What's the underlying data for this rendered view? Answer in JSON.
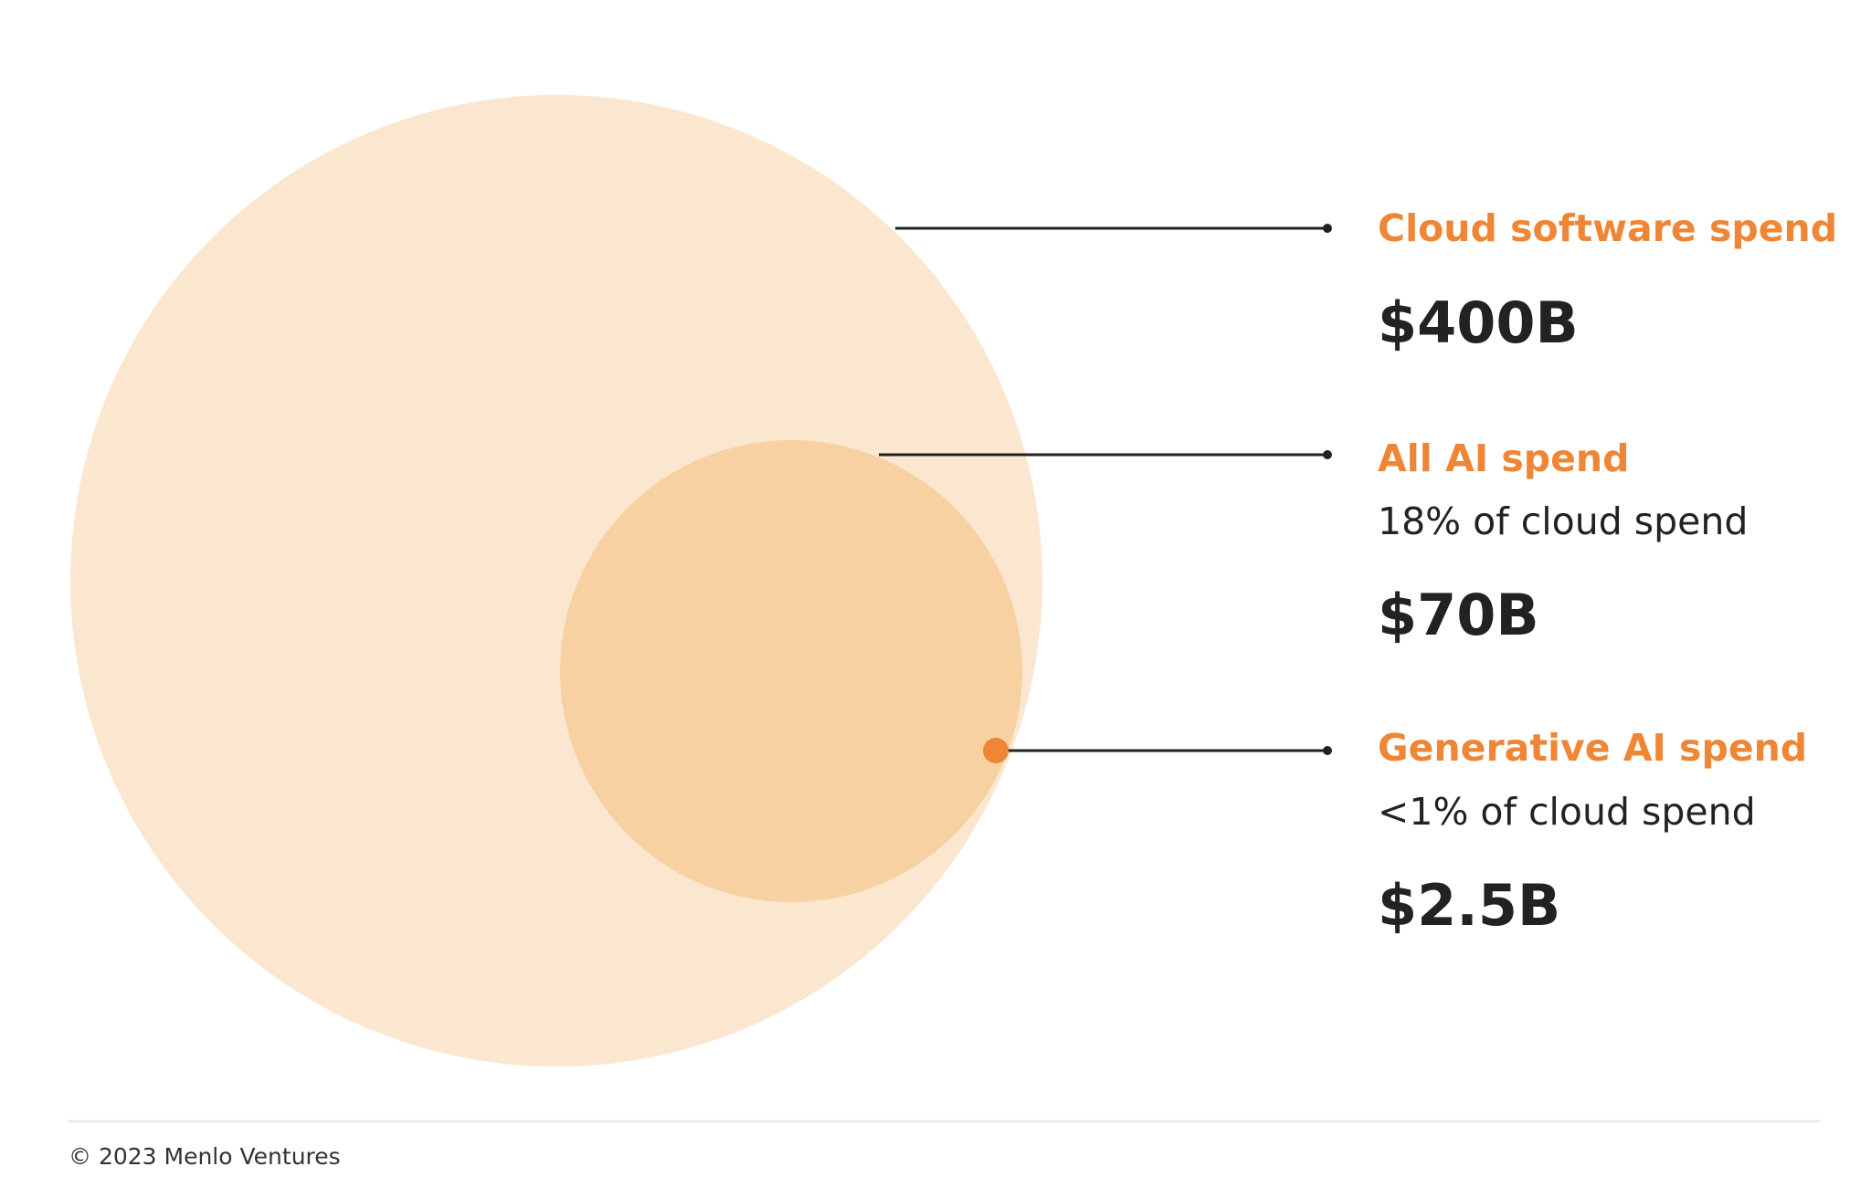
{
  "colors": {
    "outer_circle": "#fbe6cf",
    "inner_circle": "#f7d1a2",
    "marker": "#ee8636",
    "accent_text": "#ee8636",
    "dark_text": "#222222",
    "leader_line": "#222222",
    "divider": "#ececec",
    "footer_text": "#333333"
  },
  "items": [
    {
      "title": "Cloud software spend",
      "subtitle": "",
      "value": "$400B"
    },
    {
      "title": "All AI spend",
      "subtitle": "18% of cloud spend",
      "value": "$70B"
    },
    {
      "title": "Generative AI spend",
      "subtitle": "<1% of cloud spend",
      "value": "$2.5B"
    }
  ],
  "footer": {
    "copyright": "© 2023 Menlo Ventures"
  }
}
